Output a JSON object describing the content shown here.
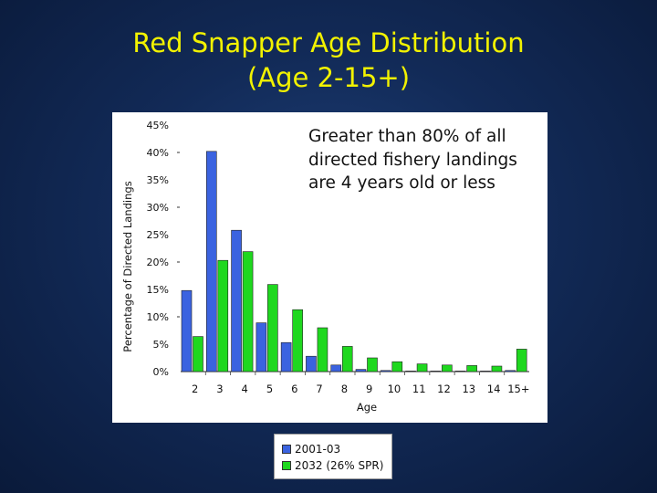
{
  "slide": {
    "title_line1": "Red Snapper Age Distribution",
    "title_line2": "(Age 2-15+)"
  },
  "annotation": "Greater than 80% of all directed fishery landings are 4 years old or less",
  "colors": {
    "title": "#f2f200",
    "series1": "#3b63e0",
    "series2": "#1fd81f"
  },
  "chart_data": {
    "type": "bar",
    "xlabel": "Age",
    "ylabel": "Percentage of Directed Landings",
    "categories": [
      "2",
      "3",
      "4",
      "5",
      "6",
      "7",
      "8",
      "9",
      "10",
      "11",
      "12",
      "13",
      "14",
      "15+"
    ],
    "ylim": [
      0,
      45
    ],
    "yticks": [
      "0%",
      "5%",
      "10%",
      "15%",
      "20%",
      "25%",
      "30%",
      "35%",
      "40%",
      "45%"
    ],
    "series": [
      {
        "name": "2001-03",
        "values": [
          14.8,
          40.2,
          25.8,
          8.9,
          5.3,
          2.8,
          1.2,
          0.4,
          0.2,
          0.1,
          0.1,
          0.1,
          0.05,
          0.2
        ]
      },
      {
        "name": "2032 (26% SPR)",
        "values": [
          6.4,
          20.3,
          21.9,
          15.9,
          11.3,
          8.0,
          4.6,
          2.5,
          1.8,
          1.4,
          1.2,
          1.1,
          1.0,
          4.1
        ]
      }
    ],
    "legend": "bottom"
  }
}
